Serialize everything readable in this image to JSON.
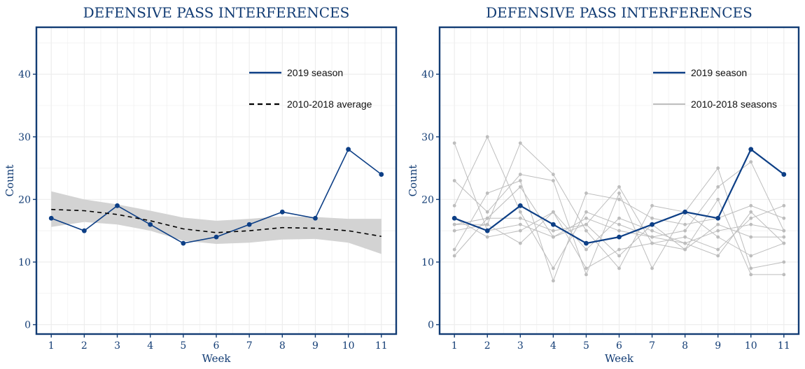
{
  "colors": {
    "accent": "#0d3f86",
    "frame": "#123c74",
    "grid": "#ececec",
    "band": "#d3d3d3",
    "history": "#bdbdbd",
    "average": "#000000"
  },
  "chart_data": [
    {
      "type": "line",
      "title": "DEFENSIVE PASS INTERFERENCES",
      "xlabel": "Week",
      "ylabel": "Count",
      "x": [
        1,
        2,
        3,
        4,
        5,
        6,
        7,
        8,
        9,
        10,
        11
      ],
      "ylim": [
        -1.5,
        47.5
      ],
      "yticks": [
        0,
        10,
        20,
        30,
        40
      ],
      "grid": true,
      "legend_placement": "top-right",
      "series": [
        {
          "name": "2019 season",
          "values": [
            17,
            15,
            19,
            16,
            13,
            14,
            16,
            18,
            17,
            28,
            24
          ]
        },
        {
          "name": "2010-2018 average",
          "values": [
            18.4,
            18.2,
            17.6,
            16.6,
            15.3,
            14.7,
            15.0,
            15.5,
            15.4,
            15.0,
            14.1
          ]
        }
      ],
      "band": {
        "lower": [
          15.6,
          16.4,
          16.0,
          15.0,
          13.4,
          12.9,
          13.1,
          13.6,
          13.7,
          13.1,
          11.3
        ],
        "upper": [
          21.3,
          20.0,
          19.2,
          18.2,
          17.1,
          16.6,
          16.9,
          17.3,
          17.2,
          16.9,
          16.9
        ]
      }
    },
    {
      "type": "line",
      "title": "DEFENSIVE PASS INTERFERENCES",
      "xlabel": "Week",
      "ylabel": "Count",
      "x": [
        1,
        2,
        3,
        4,
        5,
        6,
        7,
        8,
        9,
        10,
        11
      ],
      "ylim": [
        -1.5,
        47.5
      ],
      "yticks": [
        0,
        10,
        20,
        30,
        40
      ],
      "grid": true,
      "legend_placement": "top-right",
      "series": [
        {
          "name": "2019 season",
          "values": [
            17,
            15,
            19,
            16,
            13,
            14,
            16,
            18,
            17,
            28,
            24
          ]
        }
      ],
      "legend_history_label": "2010-2018 seasons",
      "history": [
        [
          29,
          15,
          16,
          14,
          16,
          11,
          16,
          12,
          20,
          8,
          8
        ],
        [
          23,
          18,
          24,
          23,
          8,
          21,
          9,
          18,
          25,
          9,
          10
        ],
        [
          16,
          16,
          29,
          24,
          15,
          9,
          19,
          18,
          14,
          11,
          13
        ],
        [
          19,
          30,
          18,
          9,
          18,
          16,
          14,
          15,
          22,
          26,
          15
        ],
        [
          12,
          21,
          23,
          7,
          21,
          20,
          17,
          16,
          17,
          19,
          17
        ],
        [
          15,
          16,
          13,
          18,
          12,
          17,
          15,
          13,
          11,
          18,
          13
        ],
        [
          11,
          17,
          17,
          15,
          16,
          22,
          13,
          14,
          12,
          17,
          19
        ],
        [
          17,
          14,
          15,
          18,
          9,
          12,
          13,
          12,
          16,
          14,
          14
        ],
        [
          16,
          17,
          22,
          14,
          17,
          15,
          14,
          13,
          15,
          16,
          15
        ]
      ]
    }
  ]
}
